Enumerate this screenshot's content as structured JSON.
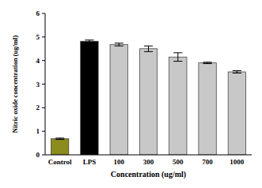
{
  "chart_data": {
    "type": "bar",
    "categories": [
      "Control",
      "LPS",
      "100",
      "300",
      "500",
      "700",
      "1000"
    ],
    "values": [
      0.68,
      4.82,
      4.68,
      4.5,
      4.15,
      3.9,
      3.52
    ],
    "errors": [
      0.03,
      0.05,
      0.06,
      0.12,
      0.18,
      0.03,
      0.05
    ],
    "colors": [
      "#8c8c1e",
      "#000000",
      "#c8c8c8",
      "#c8c8c8",
      "#c8c8c8",
      "#c8c8c8",
      "#c8c8c8"
    ],
    "x_label": "Concentration (ug/ml)",
    "y_label": "Nitric oxide concentration (ug/ml)",
    "ylim": [
      0,
      6
    ],
    "yticks": [
      0,
      1,
      2,
      3,
      4,
      5,
      6
    ],
    "grid": false
  }
}
